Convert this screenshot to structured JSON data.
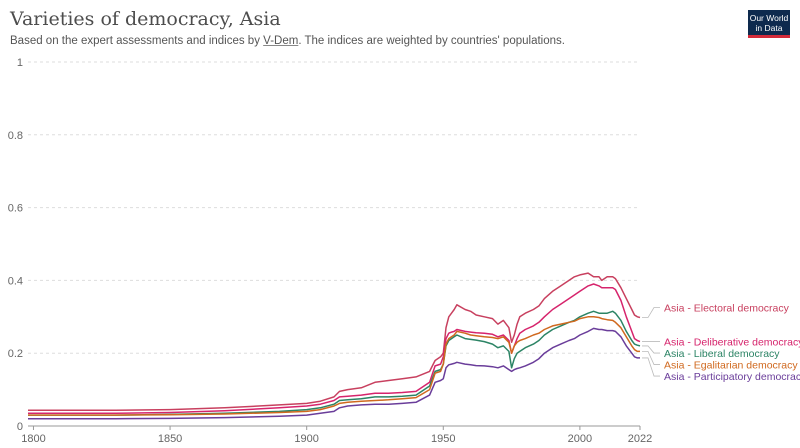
{
  "header": {
    "title": "Varieties of democracy, Asia",
    "subtitle_before": "Based on the expert assessments and indices by ",
    "subtitle_link": "V-Dem",
    "subtitle_after": ". The indices are weighted by countries' populations.",
    "logo_line1": "Our World",
    "logo_line2": "in Data"
  },
  "chart_data": {
    "type": "line",
    "title": "Varieties of democracy, Asia",
    "xlim": [
      1798,
      2022
    ],
    "ylim": [
      0,
      1
    ],
    "x_ticks": [
      1800,
      1850,
      1900,
      1950,
      2000,
      2022
    ],
    "y_ticks": [
      0,
      0.2,
      0.4,
      0.6,
      0.8,
      1
    ],
    "grid": "horizontal-dashed",
    "legend": "right-end-labels",
    "series": [
      {
        "name": "Asia - Electoral democracy",
        "color": "#c8405f",
        "x": [
          1798,
          1830,
          1850,
          1870,
          1890,
          1900,
          1905,
          1910,
          1912,
          1915,
          1920,
          1925,
          1930,
          1935,
          1940,
          1945,
          1947,
          1949,
          1950,
          1951,
          1952,
          1953,
          1954,
          1955,
          1958,
          1960,
          1962,
          1965,
          1968,
          1970,
          1972,
          1974,
          1975,
          1976,
          1977,
          1978,
          1980,
          1983,
          1985,
          1987,
          1990,
          1993,
          1996,
          1998,
          2000,
          2003,
          2005,
          2007,
          2008,
          2010,
          2012,
          2013,
          2015,
          2017,
          2019,
          2020,
          2021,
          2022
        ],
        "y": [
          0.043,
          0.043,
          0.045,
          0.05,
          0.058,
          0.062,
          0.068,
          0.08,
          0.095,
          0.1,
          0.105,
          0.12,
          0.125,
          0.13,
          0.135,
          0.15,
          0.18,
          0.19,
          0.2,
          0.27,
          0.3,
          0.31,
          0.32,
          0.333,
          0.32,
          0.315,
          0.305,
          0.3,
          0.295,
          0.28,
          0.29,
          0.27,
          0.23,
          0.25,
          0.28,
          0.3,
          0.31,
          0.32,
          0.33,
          0.35,
          0.37,
          0.385,
          0.4,
          0.41,
          0.415,
          0.42,
          0.41,
          0.41,
          0.4,
          0.41,
          0.41,
          0.405,
          0.38,
          0.35,
          0.32,
          0.305,
          0.3,
          0.298
        ]
      },
      {
        "name": "Asia - Deliberative democracy",
        "color": "#d6246c",
        "x": [
          1798,
          1830,
          1850,
          1870,
          1890,
          1900,
          1905,
          1910,
          1912,
          1915,
          1920,
          1925,
          1930,
          1935,
          1940,
          1945,
          1947,
          1949,
          1950,
          1951,
          1952,
          1953,
          1954,
          1955,
          1958,
          1960,
          1962,
          1965,
          1968,
          1970,
          1972,
          1974,
          1975,
          1976,
          1977,
          1978,
          1980,
          1983,
          1985,
          1987,
          1990,
          1993,
          1996,
          1998,
          2000,
          2003,
          2005,
          2007,
          2008,
          2010,
          2012,
          2013,
          2015,
          2017,
          2019,
          2020,
          2021,
          2022
        ],
        "y": [
          0.035,
          0.035,
          0.037,
          0.042,
          0.05,
          0.055,
          0.06,
          0.07,
          0.08,
          0.082,
          0.085,
          0.09,
          0.09,
          0.092,
          0.095,
          0.12,
          0.165,
          0.17,
          0.19,
          0.24,
          0.255,
          0.258,
          0.26,
          0.265,
          0.26,
          0.258,
          0.256,
          0.255,
          0.252,
          0.245,
          0.25,
          0.235,
          0.2,
          0.22,
          0.24,
          0.255,
          0.265,
          0.275,
          0.285,
          0.3,
          0.32,
          0.335,
          0.35,
          0.36,
          0.37,
          0.385,
          0.39,
          0.385,
          0.38,
          0.38,
          0.38,
          0.375,
          0.345,
          0.3,
          0.26,
          0.24,
          0.235,
          0.232
        ]
      },
      {
        "name": "Asia - Liberal democracy",
        "color": "#2c8465",
        "x": [
          1798,
          1830,
          1850,
          1870,
          1890,
          1900,
          1905,
          1910,
          1912,
          1915,
          1920,
          1925,
          1930,
          1935,
          1940,
          1945,
          1947,
          1949,
          1950,
          1951,
          1952,
          1953,
          1954,
          1955,
          1958,
          1960,
          1962,
          1965,
          1968,
          1970,
          1972,
          1974,
          1975,
          1976,
          1977,
          1978,
          1980,
          1983,
          1985,
          1987,
          1990,
          1993,
          1996,
          1998,
          2000,
          2003,
          2005,
          2007,
          2008,
          2010,
          2012,
          2013,
          2015,
          2017,
          2019,
          2020,
          2021,
          2022
        ],
        "y": [
          0.03,
          0.03,
          0.032,
          0.035,
          0.04,
          0.045,
          0.05,
          0.06,
          0.07,
          0.072,
          0.075,
          0.08,
          0.08,
          0.082,
          0.085,
          0.11,
          0.15,
          0.155,
          0.17,
          0.22,
          0.235,
          0.24,
          0.245,
          0.25,
          0.24,
          0.238,
          0.236,
          0.232,
          0.225,
          0.215,
          0.22,
          0.205,
          0.16,
          0.185,
          0.2,
          0.205,
          0.215,
          0.225,
          0.235,
          0.25,
          0.265,
          0.275,
          0.285,
          0.29,
          0.3,
          0.31,
          0.315,
          0.31,
          0.31,
          0.31,
          0.315,
          0.31,
          0.29,
          0.26,
          0.235,
          0.225,
          0.222,
          0.22
        ]
      },
      {
        "name": "Asia - Egalitarian democracy",
        "color": "#d0691f",
        "x": [
          1798,
          1830,
          1850,
          1870,
          1890,
          1900,
          1905,
          1910,
          1912,
          1915,
          1920,
          1925,
          1930,
          1935,
          1940,
          1945,
          1947,
          1949,
          1950,
          1951,
          1952,
          1953,
          1954,
          1955,
          1958,
          1960,
          1962,
          1965,
          1968,
          1970,
          1972,
          1974,
          1975,
          1976,
          1977,
          1978,
          1980,
          1983,
          1985,
          1987,
          1990,
          1993,
          1996,
          1998,
          2000,
          2003,
          2005,
          2007,
          2008,
          2010,
          2012,
          2013,
          2015,
          2017,
          2019,
          2020,
          2021,
          2022
        ],
        "y": [
          0.03,
          0.03,
          0.031,
          0.033,
          0.037,
          0.04,
          0.045,
          0.055,
          0.062,
          0.065,
          0.068,
          0.07,
          0.072,
          0.075,
          0.078,
          0.1,
          0.145,
          0.15,
          0.17,
          0.225,
          0.24,
          0.245,
          0.25,
          0.26,
          0.255,
          0.25,
          0.248,
          0.245,
          0.243,
          0.24,
          0.245,
          0.23,
          0.2,
          0.22,
          0.23,
          0.235,
          0.24,
          0.25,
          0.255,
          0.265,
          0.275,
          0.28,
          0.285,
          0.288,
          0.295,
          0.3,
          0.3,
          0.298,
          0.295,
          0.292,
          0.29,
          0.285,
          0.27,
          0.245,
          0.22,
          0.21,
          0.205,
          0.205
        ]
      },
      {
        "name": "Asia - Participatory democracy",
        "color": "#6a3d9a",
        "x": [
          1798,
          1830,
          1850,
          1870,
          1890,
          1900,
          1905,
          1910,
          1912,
          1915,
          1920,
          1925,
          1930,
          1935,
          1940,
          1945,
          1947,
          1949,
          1950,
          1951,
          1952,
          1953,
          1954,
          1955,
          1958,
          1960,
          1962,
          1965,
          1968,
          1970,
          1972,
          1974,
          1975,
          1976,
          1977,
          1978,
          1980,
          1983,
          1985,
          1987,
          1990,
          1993,
          1996,
          1998,
          2000,
          2003,
          2005,
          2007,
          2008,
          2010,
          2012,
          2013,
          2015,
          2017,
          2019,
          2020,
          2021,
          2022
        ],
        "y": [
          0.02,
          0.02,
          0.021,
          0.023,
          0.027,
          0.03,
          0.035,
          0.04,
          0.05,
          0.055,
          0.058,
          0.06,
          0.06,
          0.062,
          0.065,
          0.085,
          0.12,
          0.125,
          0.13,
          0.16,
          0.168,
          0.17,
          0.172,
          0.175,
          0.17,
          0.168,
          0.166,
          0.165,
          0.163,
          0.16,
          0.165,
          0.155,
          0.15,
          0.155,
          0.158,
          0.16,
          0.165,
          0.175,
          0.185,
          0.2,
          0.215,
          0.225,
          0.235,
          0.24,
          0.25,
          0.26,
          0.268,
          0.265,
          0.265,
          0.262,
          0.262,
          0.26,
          0.245,
          0.22,
          0.2,
          0.19,
          0.187,
          0.187
        ]
      }
    ]
  }
}
